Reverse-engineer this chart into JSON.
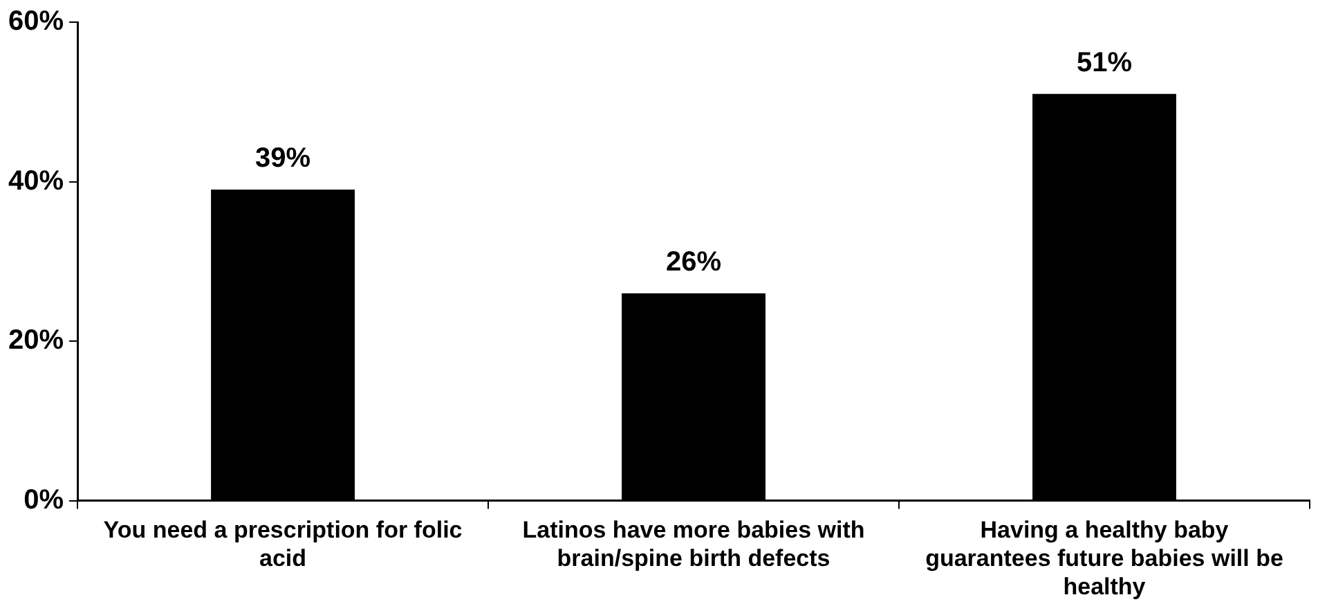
{
  "chart_data": {
    "type": "bar",
    "categories": [
      "You need a prescription for folic acid",
      "Latinos have more babies with brain/spine birth defects",
      "Having a healthy baby guarantees future babies will be healthy"
    ],
    "values": [
      39,
      26,
      51
    ],
    "value_labels": [
      "39%",
      "26%",
      "51%"
    ],
    "color": "#000000",
    "ylim": [
      0,
      60
    ],
    "yticks": [
      {
        "value": 0,
        "label": "0%"
      },
      {
        "value": 20,
        "label": "20%"
      },
      {
        "value": 40,
        "label": "40%"
      },
      {
        "value": 60,
        "label": "60%"
      }
    ],
    "grid": false,
    "legend": false
  }
}
